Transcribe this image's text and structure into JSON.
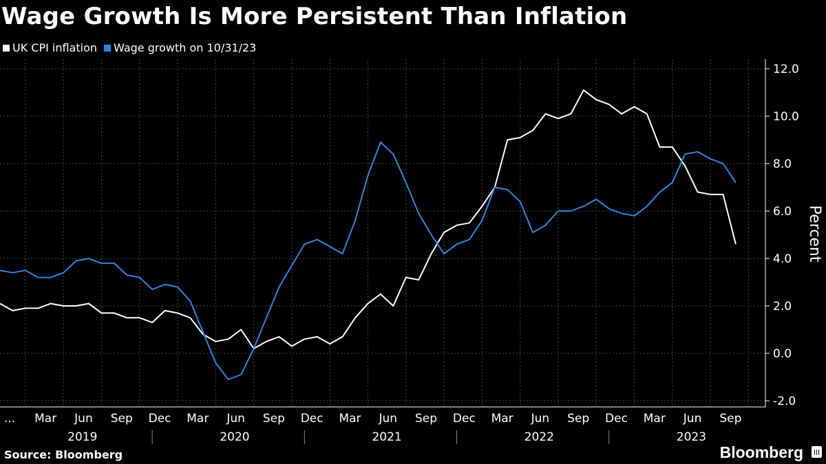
{
  "chart_data": {
    "type": "line",
    "title": "Wage Growth Is More Persistent Than Inflation",
    "ylabel": "Percent",
    "ylim": [
      -2.0,
      12.0
    ],
    "yticks": [
      "-2.0",
      "0.0",
      "2.0",
      "4.0",
      "6.0",
      "8.0",
      "10.0",
      "12.0"
    ],
    "x_start": "2018-12",
    "x_labels_month": [
      "...",
      "Mar",
      "Jun",
      "Sep",
      "Dec",
      "Mar",
      "Jun",
      "Sep",
      "Dec",
      "Mar",
      "Jun",
      "Sep",
      "Dec",
      "Mar",
      "Jun",
      "Sep",
      "Dec",
      "Mar",
      "Jun",
      "Sep"
    ],
    "x_labels_year": [
      "2019",
      "2020",
      "2021",
      "2022",
      "2023"
    ],
    "grid": true,
    "series": [
      {
        "name": "UK CPI inflation",
        "color": "#ffffff",
        "values": [
          2.1,
          1.8,
          1.9,
          1.9,
          2.1,
          2.0,
          2.0,
          2.1,
          1.7,
          1.7,
          1.5,
          1.5,
          1.3,
          1.8,
          1.7,
          1.5,
          0.8,
          0.5,
          0.6,
          1.0,
          0.2,
          0.5,
          0.7,
          0.3,
          0.6,
          0.7,
          0.4,
          0.7,
          1.5,
          2.1,
          2.5,
          2.0,
          3.2,
          3.1,
          4.2,
          5.1,
          5.4,
          5.5,
          6.2,
          7.0,
          9.0,
          9.1,
          9.4,
          10.1,
          9.9,
          10.1,
          11.1,
          10.7,
          10.5,
          10.1,
          10.4,
          10.1,
          8.7,
          8.7,
          7.9,
          6.8,
          6.7,
          6.7,
          4.6
        ]
      },
      {
        "name": "Wage growth on 10/31/23",
        "color": "#2e86de",
        "values": [
          3.5,
          3.4,
          3.5,
          3.2,
          3.2,
          3.4,
          3.9,
          4.0,
          3.8,
          3.8,
          3.3,
          3.2,
          2.7,
          2.9,
          2.8,
          2.2,
          0.9,
          -0.4,
          -1.1,
          -0.9,
          0.2,
          1.5,
          2.8,
          3.7,
          4.6,
          4.8,
          4.5,
          4.2,
          5.6,
          7.5,
          8.9,
          8.4,
          7.2,
          5.9,
          5.0,
          4.2,
          4.6,
          4.8,
          5.6,
          7.0,
          6.9,
          6.4,
          5.1,
          5.4,
          6.0,
          6.0,
          6.2,
          6.5,
          6.1,
          5.9,
          5.8,
          6.2,
          6.8,
          7.2,
          8.4,
          8.5,
          8.2,
          8.0,
          7.2
        ]
      }
    ]
  },
  "header": {
    "title": "Wage Growth Is More Persistent Than Inflation"
  },
  "legend": {
    "items": [
      {
        "label": "UK CPI inflation",
        "color": "#ffffff"
      },
      {
        "label": "Wage growth on 10/31/23",
        "color": "#2e86de"
      }
    ]
  },
  "footer": {
    "source": "Source: Bloomberg",
    "brand": "Bloomberg"
  }
}
